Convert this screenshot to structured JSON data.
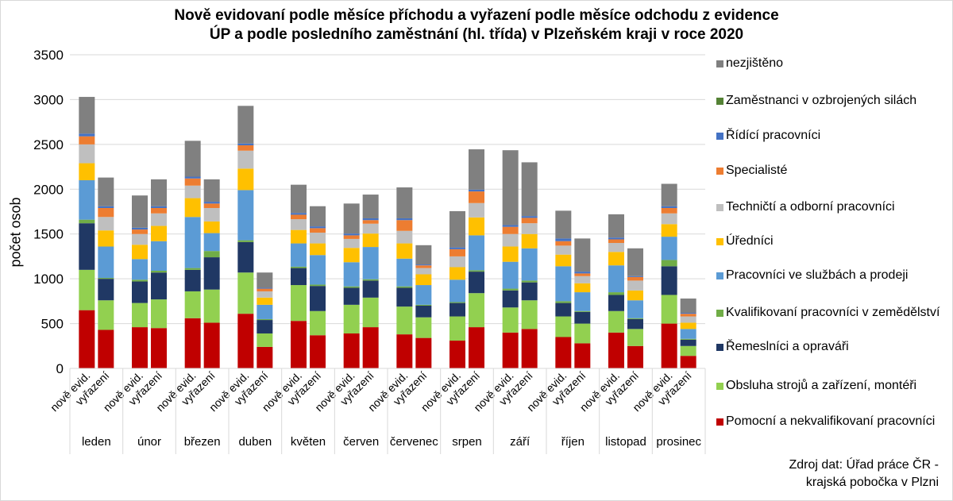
{
  "chart_data": {
    "type": "bar",
    "stacked": true,
    "title": "Nově evidovaní podle měsíce příchodu a vyřazení podle měsíce odchodu z evidence ÚP a podle posledního zaměstnání (hl. třída) v Plzeňském kraji v roce 2020",
    "title_lines": [
      "Nově evidovaní podle měsíce příchodu a vyřazení podle měsíce odchodu z evidence",
      "ÚP a podle posledního zaměstnání (hl. třída) v Plzeňském kraji v roce 2020"
    ],
    "ylabel": "počet osob",
    "ylim": [
      0,
      3500
    ],
    "yticks": [
      "0",
      "500",
      "1000",
      "1500",
      "2000",
      "2500",
      "3000",
      "3500"
    ],
    "grid": true,
    "legend_position": "right",
    "months": [
      "leden",
      "únor",
      "březen",
      "duben",
      "květen",
      "červen",
      "červenec",
      "srpen",
      "září",
      "říjen",
      "listopad",
      "prosinec"
    ],
    "bar_labels": [
      "nově evid.",
      "vyřazení"
    ],
    "categories": [
      "leden – nově evid.",
      "leden – vyřazení",
      "únor – nově evid.",
      "únor – vyřazení",
      "březen – nově evid.",
      "březen – vyřazení",
      "duben – nově evid.",
      "duben – vyřazení",
      "květen – nově evid.",
      "květen – vyřazení",
      "červen – nově evid.",
      "červen – vyřazení",
      "červenec – nově evid.",
      "červenec – vyřazení",
      "srpen – nově evid.",
      "srpen – vyřazení",
      "září – nově evid.",
      "září – vyřazení",
      "říjen – nově evid.",
      "říjen – vyřazení",
      "listopad – nově evid.",
      "listopad – vyřazení",
      "prosinec – nově evid.",
      "prosinec – vyřazení"
    ],
    "series": [
      {
        "name": "Pomocní a nekvalifikovaní pracovníci",
        "color": "#c00000",
        "values": [
          650,
          430,
          460,
          450,
          560,
          510,
          610,
          240,
          530,
          370,
          390,
          460,
          380,
          340,
          310,
          460,
          400,
          440,
          350,
          280,
          400,
          250,
          500,
          140
        ]
      },
      {
        "name": "Obsluha strojů a zařízení, montéři",
        "color": "#92d050",
        "values": [
          450,
          330,
          270,
          320,
          300,
          370,
          460,
          150,
          400,
          270,
          320,
          330,
          310,
          230,
          270,
          380,
          280,
          320,
          230,
          220,
          240,
          190,
          320,
          110
        ]
      },
      {
        "name": "Řemeslníci a opraváři",
        "color": "#203864",
        "values": [
          520,
          240,
          240,
          300,
          240,
          360,
          340,
          150,
          190,
          280,
          190,
          190,
          210,
          130,
          150,
          240,
          190,
          200,
          150,
          130,
          180,
          110,
          320,
          70
        ]
      },
      {
        "name": "Kvalifikovaní pracovníci v zemědělství",
        "color": "#70ad47",
        "values": [
          40,
          10,
          20,
          20,
          20,
          70,
          20,
          10,
          15,
          15,
          15,
          15,
          15,
          10,
          10,
          15,
          20,
          20,
          20,
          10,
          30,
          10,
          70,
          10
        ]
      },
      {
        "name": "Pracovníci ve službách a prodeji",
        "color": "#5b9bd5",
        "values": [
          440,
          350,
          230,
          330,
          570,
          200,
          560,
          160,
          260,
          330,
          270,
          360,
          310,
          220,
          250,
          390,
          300,
          360,
          390,
          210,
          300,
          200,
          260,
          110
        ]
      },
      {
        "name": "Úředníci",
        "color": "#ffc000",
        "values": [
          190,
          180,
          160,
          170,
          210,
          130,
          240,
          80,
          150,
          130,
          160,
          150,
          170,
          120,
          140,
          200,
          170,
          160,
          130,
          100,
          150,
          110,
          140,
          70
        ]
      },
      {
        "name": "Techničtí a odborní pracovníci",
        "color": "#bfbfbf",
        "values": [
          210,
          150,
          120,
          140,
          140,
          150,
          200,
          70,
          120,
          120,
          100,
          110,
          140,
          70,
          120,
          160,
          140,
          120,
          100,
          80,
          100,
          110,
          120,
          70
        ]
      },
      {
        "name": "Specialisté",
        "color": "#ed7d31",
        "values": [
          90,
          100,
          50,
          60,
          80,
          50,
          60,
          30,
          50,
          50,
          40,
          40,
          120,
          30,
          80,
          130,
          80,
          60,
          50,
          30,
          40,
          40,
          60,
          30
        ]
      },
      {
        "name": "Řídící pracovníci",
        "color": "#4472c4",
        "values": [
          30,
          20,
          20,
          20,
          20,
          20,
          20,
          10,
          20,
          20,
          20,
          20,
          20,
          10,
          20,
          20,
          20,
          20,
          30,
          20,
          20,
          10,
          20,
          10
        ]
      },
      {
        "name": "Zaměstnanci v ozbrojených silách",
        "color": "#548235",
        "values": [
          0,
          0,
          0,
          0,
          0,
          0,
          0,
          0,
          0,
          0,
          0,
          0,
          0,
          0,
          0,
          0,
          0,
          0,
          0,
          0,
          0,
          0,
          0,
          0
        ]
      },
      {
        "name": "nezjištěno",
        "color": "#808080",
        "values": [
          410,
          320,
          360,
          300,
          400,
          250,
          420,
          170,
          315,
          225,
          335,
          265,
          345,
          215,
          405,
          450,
          835,
          600,
          310,
          370,
          260,
          310,
          250,
          160
        ]
      }
    ],
    "legend_order": [
      "nezjištěno",
      "Zaměstnanci v ozbrojených silách",
      "Řídící pracovníci",
      "Specialisté",
      "Techničtí a odborní pracovníci",
      "Úředníci",
      "Pracovníci ve službách a prodeji",
      "Kvalifikovaní pracovníci v zemědělství",
      "Řemeslníci a opraváři",
      "Obsluha strojů a zařízení, montéři",
      "Pomocní a nekvalifikovaní pracovníci"
    ]
  },
  "source_lines": [
    "Zdroj dat: Úřad práce ČR -",
    "krajská pobočka v Plzni"
  ]
}
